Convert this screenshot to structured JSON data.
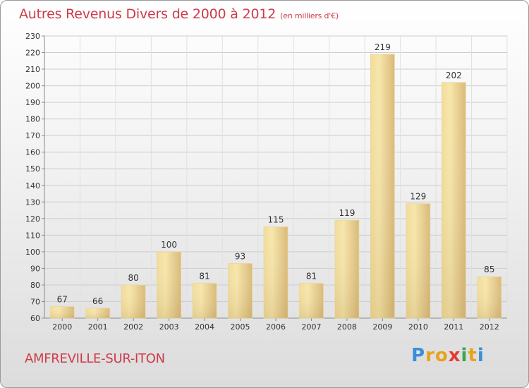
{
  "title": "Autres Revenus Divers de 2000 à 2012",
  "subtitle": "(en milliers d'€)",
  "location": "AMFREVILLE-SUR-ITON",
  "logo": {
    "letters": [
      "P",
      "r",
      "o",
      "x",
      "i",
      "t",
      "i"
    ],
    "colors": [
      "#3a8fd6",
      "#e8a21c",
      "#e8a21c",
      "#e23b32",
      "#3aa64a",
      "#e8a21c",
      "#3a8fd6"
    ]
  },
  "colors": {
    "title": "#ce3a4a",
    "bar_light": "#f6e4a6",
    "bar_dark": "#c8a868",
    "grid": "#cfcfcf"
  },
  "chart_data": {
    "type": "bar",
    "title": "Autres Revenus Divers de 2000 à 2012",
    "subtitle": "(en milliers d'€)",
    "categories": [
      "2000",
      "2001",
      "2002",
      "2003",
      "2004",
      "2005",
      "2006",
      "2007",
      "2008",
      "2009",
      "2010",
      "2011",
      "2012"
    ],
    "values": [
      67,
      66,
      80,
      100,
      81,
      93,
      115,
      81,
      119,
      219,
      129,
      202,
      85
    ],
    "ylim": [
      60,
      230
    ],
    "yticks": [
      60,
      70,
      80,
      90,
      100,
      110,
      120,
      130,
      140,
      150,
      160,
      170,
      180,
      190,
      200,
      210,
      220,
      230
    ],
    "grid": true,
    "data_labels": true
  }
}
